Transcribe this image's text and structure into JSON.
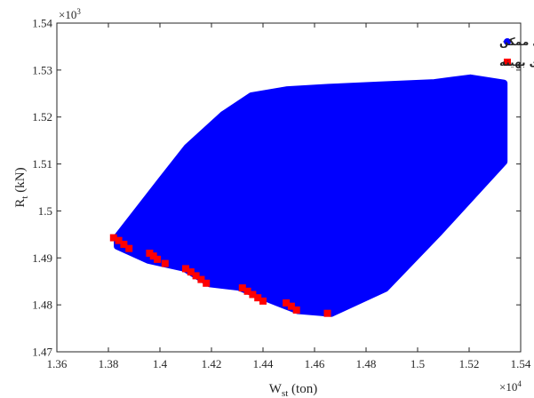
{
  "chart_data": {
    "type": "scatter",
    "x_multiplier": "×10",
    "x_multiplier_exp": "4",
    "y_multiplier": "×10",
    "y_multiplier_exp": "3",
    "xlabel_main": "W",
    "xlabel_sub": "st",
    "xlabel_rest": " (ton)",
    "ylabel_main": "R",
    "ylabel_sub": "t",
    "ylabel_rest": " (kN)",
    "xlim": [
      1.36,
      1.54
    ],
    "ylim": [
      1.47,
      1.54
    ],
    "x_ticks": [
      1.36,
      1.38,
      1.4,
      1.42,
      1.44,
      1.46,
      1.48,
      1.5,
      1.52,
      1.54
    ],
    "x_tick_labels": [
      "1.36",
      "1.38",
      "1.4",
      "1.42",
      "1.44",
      "1.46",
      "1.48",
      "1.5",
      "1.52",
      "1.54"
    ],
    "y_ticks": [
      1.47,
      1.48,
      1.49,
      1.5,
      1.51,
      1.52,
      1.53,
      1.54
    ],
    "y_tick_labels": [
      "1.47",
      "1.48",
      "1.49",
      "1.5",
      "1.51",
      "1.52",
      "1.53",
      "1.54"
    ],
    "grid": false,
    "legend_position": "top-right",
    "series": [
      {
        "name": "جوابهای ممکن",
        "marker": "circle",
        "color": "#0000ff",
        "region_polygon": [
          [
            1.3835,
            1.4945
          ],
          [
            1.4005,
            1.5065
          ],
          [
            1.4105,
            1.5135
          ],
          [
            1.4245,
            1.5205
          ],
          [
            1.4355,
            1.5245
          ],
          [
            1.4495,
            1.5258
          ],
          [
            1.4655,
            1.5263
          ],
          [
            1.4855,
            1.5268
          ],
          [
            1.5065,
            1.5273
          ],
          [
            1.5205,
            1.5283
          ],
          [
            1.5335,
            1.5272
          ],
          [
            1.5335,
            1.5105
          ],
          [
            1.5085,
            1.4955
          ],
          [
            1.4875,
            1.4835
          ],
          [
            1.4665,
            1.4782
          ],
          [
            1.4535,
            1.4788
          ],
          [
            1.4455,
            1.4805
          ],
          [
            1.4305,
            1.4838
          ],
          [
            1.4195,
            1.4845
          ],
          [
            1.4095,
            1.4878
          ],
          [
            1.3955,
            1.4895
          ],
          [
            1.3835,
            1.4925
          ]
        ]
      },
      {
        "name": "جوابهای بهینه",
        "marker": "square",
        "color": "#ff0000",
        "x": [
          1.382,
          1.384,
          1.386,
          1.388,
          1.396,
          1.3975,
          1.399,
          1.402,
          1.41,
          1.412,
          1.414,
          1.416,
          1.418,
          1.432,
          1.434,
          1.436,
          1.438,
          1.44,
          1.449,
          1.451,
          1.453,
          1.465
        ],
        "y": [
          1.4943,
          1.4937,
          1.4929,
          1.492,
          1.491,
          1.4904,
          1.4897,
          1.4888,
          1.4877,
          1.487,
          1.4862,
          1.4854,
          1.4846,
          1.4836,
          1.4829,
          1.4822,
          1.4815,
          1.4808,
          1.4804,
          1.4797,
          1.4789,
          1.4782
        ]
      }
    ]
  }
}
